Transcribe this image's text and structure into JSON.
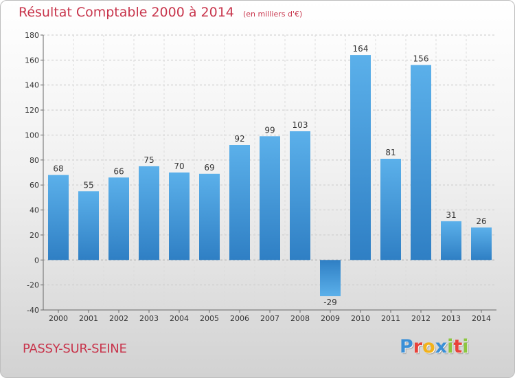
{
  "header": {
    "title": "Résultat Comptable 2000 à 2014",
    "subtitle": "(en milliers d'€)"
  },
  "footer": {
    "commune": "PASSY-SUR-SEINE",
    "logo_letters": [
      {
        "char": "P",
        "color": "#3a8fd6"
      },
      {
        "char": "r",
        "color": "#e8423a"
      },
      {
        "char": "o",
        "color": "#f2b21b"
      },
      {
        "char": "x",
        "color": "#3a8fd6"
      },
      {
        "char": "i",
        "color": "#8cc63f"
      },
      {
        "char": "t",
        "color": "#e8423a"
      },
      {
        "char": "i",
        "color": "#8cc63f"
      }
    ]
  },
  "colors": {
    "accent": "#c8354c",
    "bar_light": "#5bb0ea",
    "bar_dark": "#2f7fc4",
    "axis": "#666666"
  },
  "chart_data": {
    "type": "bar",
    "categories": [
      "2000",
      "2001",
      "2002",
      "2003",
      "2004",
      "2005",
      "2006",
      "2007",
      "2008",
      "2009",
      "2010",
      "2011",
      "2012",
      "2013",
      "2014"
    ],
    "values": [
      68,
      55,
      66,
      75,
      70,
      69,
      92,
      99,
      103,
      -29,
      164,
      81,
      156,
      31,
      26
    ],
    "ylim": [
      -40,
      180
    ],
    "yticks": [
      -40,
      -20,
      0,
      20,
      40,
      60,
      80,
      100,
      120,
      140,
      160,
      180
    ],
    "grid": "horizontal-dashed"
  }
}
